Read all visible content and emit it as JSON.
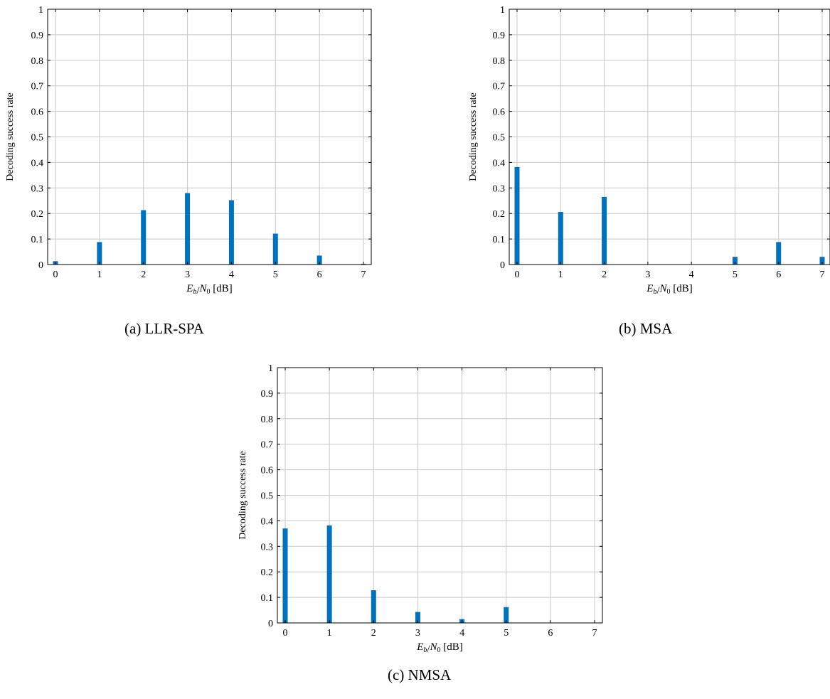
{
  "xlabel_parts": {
    "E": "E",
    "b": "b",
    "slash": "/",
    "N": "N",
    "zero": "0",
    "unit": "[dB]"
  },
  "chart_data": [
    {
      "type": "bar",
      "caption": "(a) LLR-SPA",
      "ylabel": "Decoding success rate",
      "xlabel": "Eb/N0 [dB]",
      "categories": [
        "0",
        "1",
        "2",
        "3",
        "4",
        "5",
        "6",
        "7"
      ],
      "values": [
        0.013,
        0.088,
        0.213,
        0.28,
        0.252,
        0.121,
        0.035,
        0.003
      ],
      "ylim": [
        0,
        1
      ],
      "yticks": [
        "0",
        "0.1",
        "0.2",
        "0.3",
        "0.4",
        "0.5",
        "0.6",
        "0.7",
        "0.8",
        "0.9",
        "1"
      ],
      "grid": true,
      "bar_color": "#0072bd"
    },
    {
      "type": "bar",
      "caption": "(b) MSA",
      "ylabel": "Decoding success rate",
      "xlabel": "Eb/N0 [dB]",
      "categories": [
        "0",
        "1",
        "2",
        "3",
        "4",
        "5",
        "6",
        "7"
      ],
      "values": [
        0.382,
        0.206,
        0.265,
        0,
        0,
        0.03,
        0.088,
        0.03
      ],
      "ylim": [
        0,
        1
      ],
      "yticks": [
        "0",
        "0.1",
        "0.2",
        "0.3",
        "0.4",
        "0.5",
        "0.6",
        "0.7",
        "0.8",
        "0.9",
        "1"
      ],
      "grid": true,
      "bar_color": "#0072bd"
    },
    {
      "type": "bar",
      "caption": "(c) NMSA",
      "ylabel": "Decoding success rate",
      "xlabel": "Eb/N0 [dB]",
      "categories": [
        "0",
        "1",
        "2",
        "3",
        "4",
        "5",
        "6",
        "7"
      ],
      "values": [
        0.37,
        0.382,
        0.128,
        0.043,
        0.015,
        0.062,
        0,
        0
      ],
      "ylim": [
        0,
        1
      ],
      "yticks": [
        "0",
        "0.1",
        "0.2",
        "0.3",
        "0.4",
        "0.5",
        "0.6",
        "0.7",
        "0.8",
        "0.9",
        "1"
      ],
      "grid": true,
      "bar_color": "#0072bd"
    }
  ]
}
